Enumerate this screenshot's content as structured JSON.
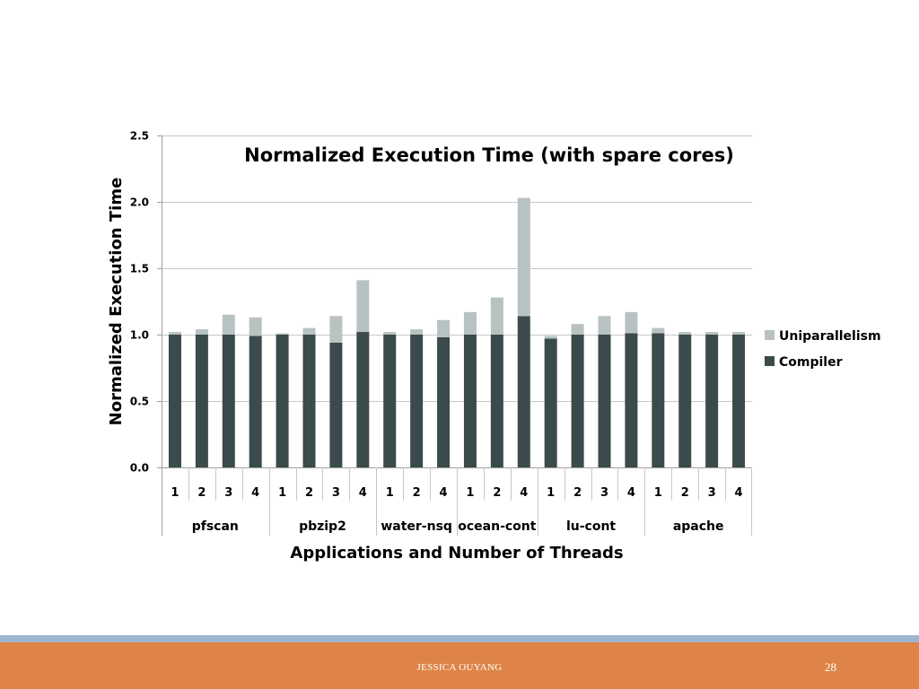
{
  "slide": {
    "footer_author": "JESSICA OUYANG",
    "page_number": "28"
  },
  "colors": {
    "compiler": "#3b4a4a",
    "uniparallelism": "#b9c2c2",
    "footer_bar": "#df8448",
    "footer_strip": "#9fb6d0"
  },
  "chart_data": {
    "type": "bar",
    "stacked": true,
    "title": "Normalized Execution Time (with spare cores)",
    "xlabel": "Applications and Number of Threads",
    "ylabel": "Normalized Execution Time",
    "ylim": [
      0,
      2.5
    ],
    "yticks": [
      "0.0",
      "0.5",
      "1.0",
      "1.5",
      "2.0",
      "2.5"
    ],
    "grid": true,
    "legend_position": "right",
    "groups": [
      {
        "name": "pfscan",
        "threads": [
          "1",
          "2",
          "3",
          "4"
        ]
      },
      {
        "name": "pbzip2",
        "threads": [
          "1",
          "2",
          "3",
          "4"
        ]
      },
      {
        "name": "water-nsq",
        "threads": [
          "1",
          "2",
          "4"
        ]
      },
      {
        "name": "ocean-cont",
        "threads": [
          "1",
          "2",
          "4"
        ]
      },
      {
        "name": "lu-cont",
        "threads": [
          "1",
          "2",
          "3",
          "4"
        ]
      },
      {
        "name": "apache",
        "threads": [
          "1",
          "2",
          "3",
          "4"
        ]
      }
    ],
    "series": [
      {
        "name": "Uniparallelism",
        "values": [
          0.02,
          0.04,
          0.15,
          0.14,
          0.01,
          0.05,
          0.2,
          0.39,
          0.02,
          0.04,
          0.13,
          0.17,
          0.28,
          0.89,
          0.02,
          0.08,
          0.14,
          0.16,
          0.04,
          0.02,
          0.02,
          0.02
        ]
      },
      {
        "name": "Compiler",
        "values": [
          1.0,
          1.0,
          1.0,
          0.99,
          1.0,
          1.0,
          0.94,
          1.02,
          1.0,
          1.0,
          0.98,
          1.0,
          1.0,
          1.14,
          0.97,
          1.0,
          1.0,
          1.01,
          1.01,
          1.0,
          1.0,
          1.0
        ]
      }
    ]
  }
}
